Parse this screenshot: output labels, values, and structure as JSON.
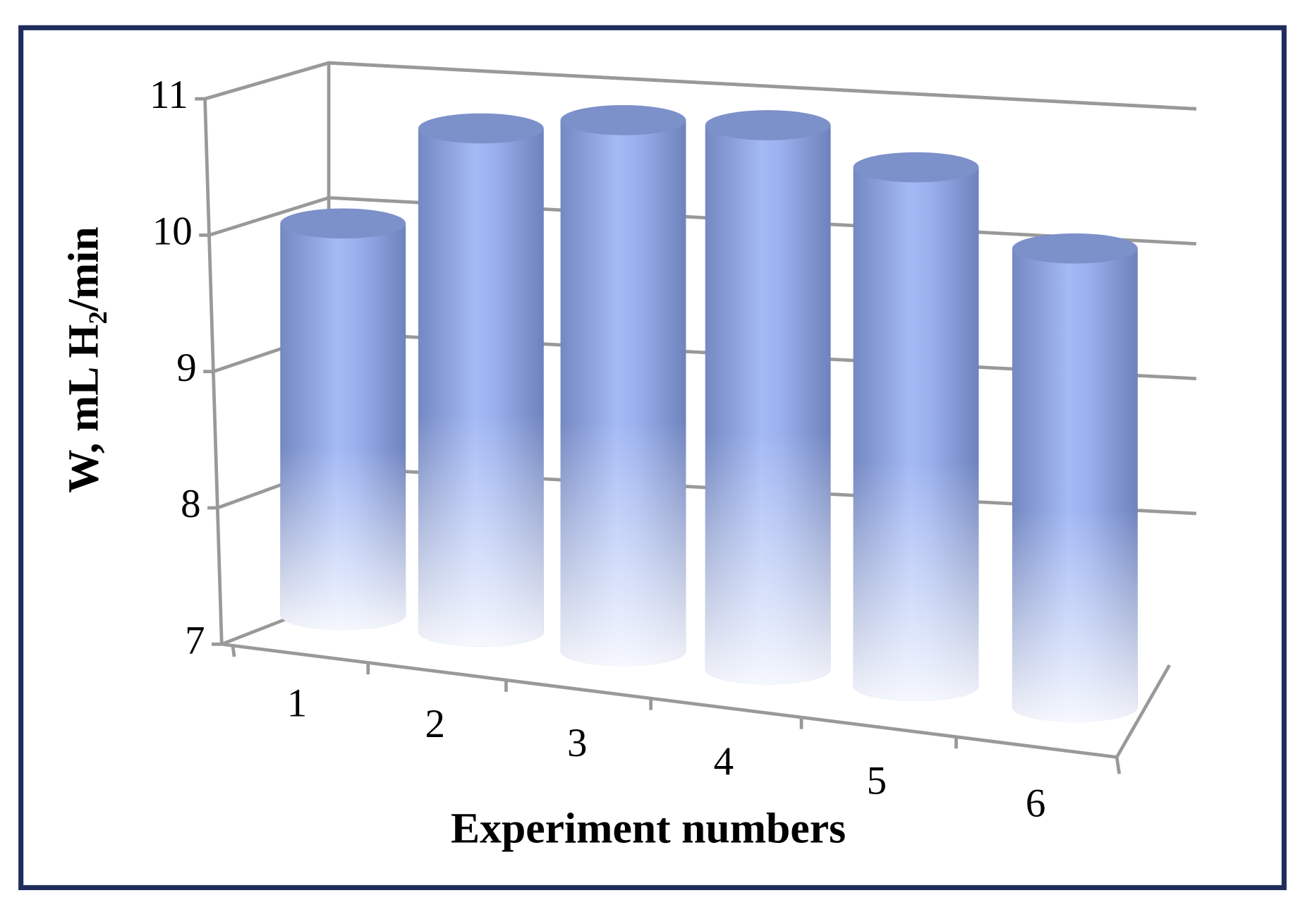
{
  "chart_data": {
    "type": "bar3d",
    "xlabel": "Experiment numbers",
    "ylabel": "W, mL H₂/min",
    "categories": [
      "1",
      "2",
      "3",
      "4",
      "5",
      "6"
    ],
    "values": [
      10.0,
      10.7,
      10.75,
      10.7,
      10.4,
      9.9
    ],
    "color": "#9db3f0",
    "ylim": [
      7,
      11
    ],
    "yticks": [
      7,
      8,
      9,
      10,
      11
    ],
    "grid": true
  }
}
